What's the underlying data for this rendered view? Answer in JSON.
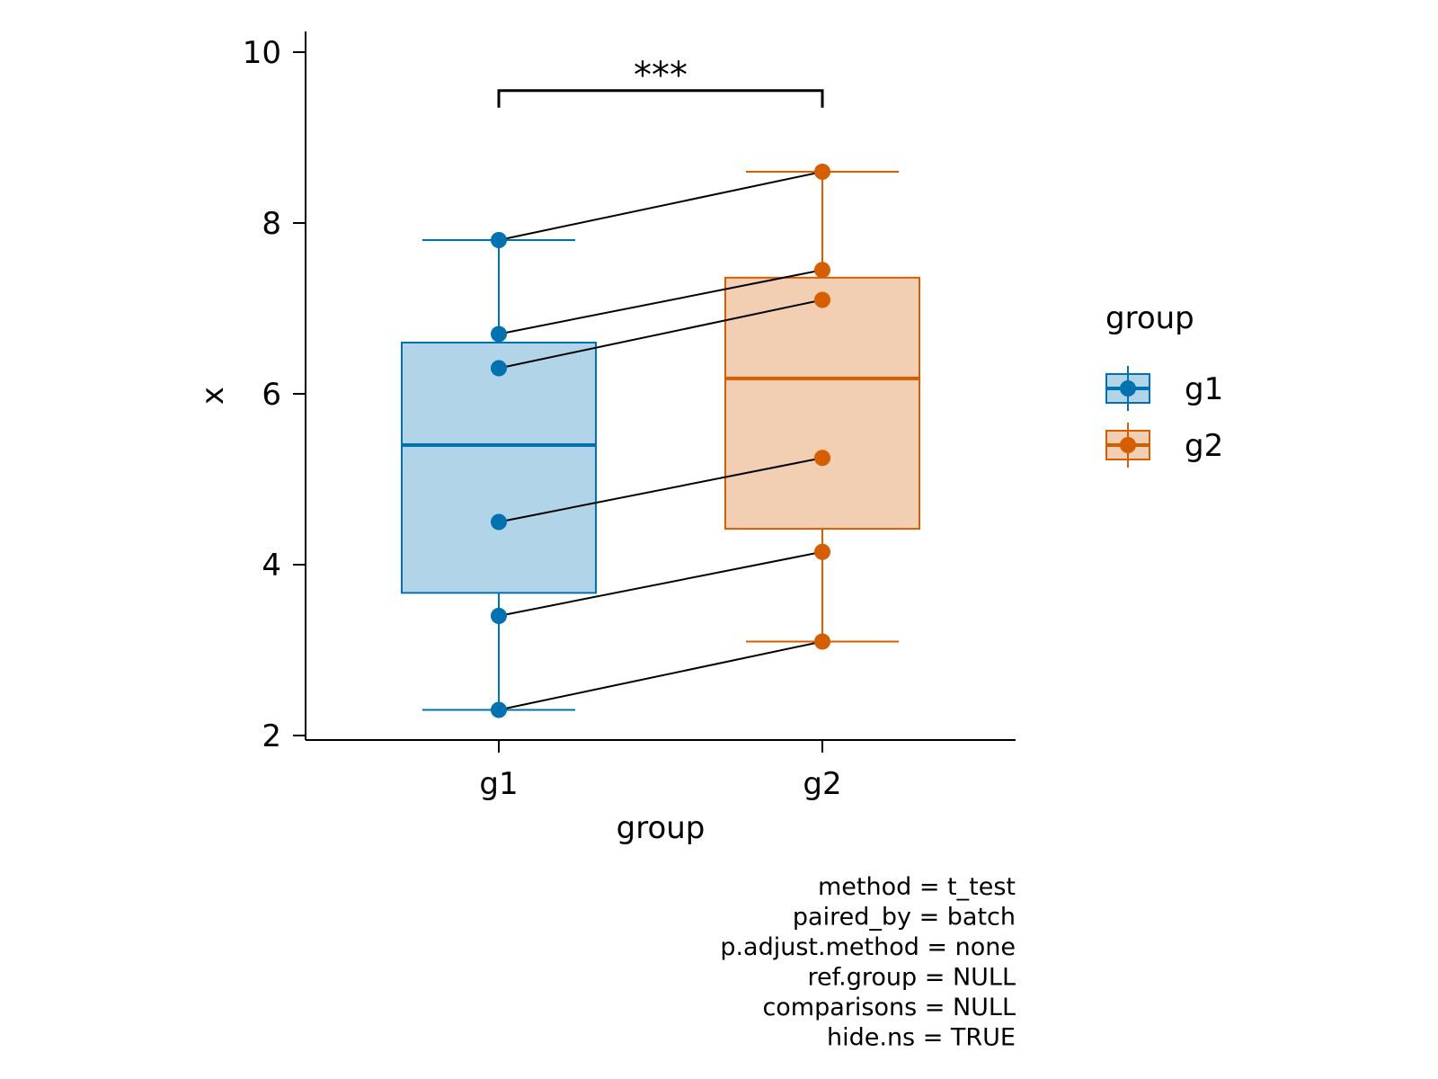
{
  "chart_data": {
    "type": "box",
    "xlabel": "group",
    "ylabel": "x",
    "ylim": [
      2,
      10
    ],
    "yticks": [
      2,
      4,
      6,
      8,
      10
    ],
    "yticks_text": [
      "2",
      "4",
      "6",
      "8",
      "10"
    ],
    "categories": [
      "g1",
      "g2"
    ],
    "colors": {
      "g1": "#0072B2",
      "g2": "#D55E00"
    },
    "boxes": [
      {
        "group": "g1",
        "min": 2.3,
        "q1": 3.67,
        "median": 5.4,
        "q3": 6.6,
        "max": 7.8
      },
      {
        "group": "g2",
        "min": 3.1,
        "q1": 4.42,
        "median": 6.18,
        "q3": 7.36,
        "max": 8.6
      }
    ],
    "series": [
      {
        "group": "g1",
        "values": [
          2.3,
          3.4,
          4.5,
          6.3,
          6.7,
          7.8
        ]
      },
      {
        "group": "g2",
        "values": [
          3.1,
          4.15,
          5.25,
          7.1,
          7.45,
          8.6
        ]
      }
    ],
    "significance": {
      "from": "g1",
      "to": "g2",
      "label": "***",
      "y": 9.55
    },
    "legend": {
      "title": "group",
      "position": "right",
      "entries": [
        {
          "label": "g1"
        },
        {
          "label": "g2"
        }
      ]
    },
    "caption": [
      "method = t_test",
      "paired_by = batch",
      "p.adjust.method = none",
      "ref.group = NULL",
      "comparisons = NULL",
      "hide.ns = TRUE"
    ],
    "grid": false
  }
}
